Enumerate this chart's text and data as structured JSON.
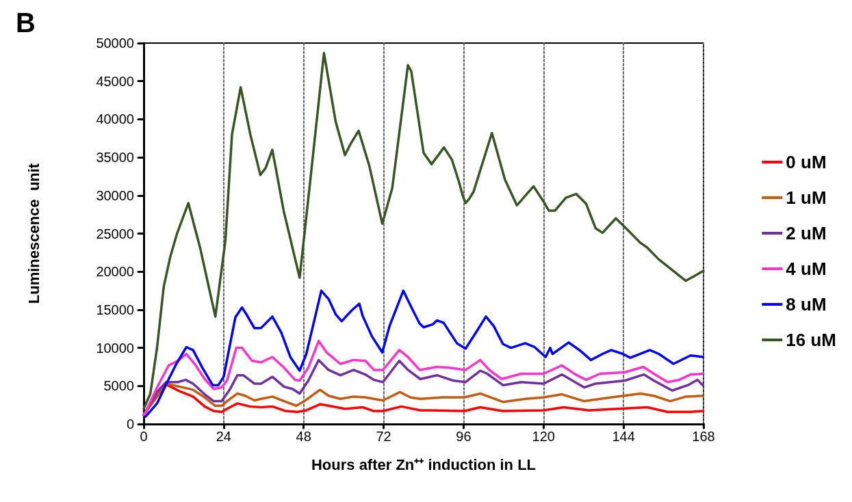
{
  "chart_data": {
    "type": "line",
    "title": "B",
    "xlabel": "Hours after Zn⁺⁺ induction in LL",
    "ylabel": "Luminescence  unit",
    "xlim": [
      0,
      168
    ],
    "xticks": [
      0,
      24,
      48,
      72,
      96,
      120,
      144,
      168
    ],
    "ylim": [
      0,
      50000
    ],
    "yticks": [
      0,
      5000,
      10000,
      15000,
      20000,
      25000,
      30000,
      35000,
      40000,
      45000,
      50000
    ],
    "grid": "x",
    "legend": "right",
    "marker": "none",
    "line_style": "solid",
    "series": [
      {
        "name": "0 uM",
        "color": "#ff0000",
        "x": [
          0,
          0.6,
          6.7,
          10.8,
          14.8,
          18.3,
          21,
          23.4,
          25,
          28.1,
          31.9,
          35.2,
          38.6,
          42.7,
          46.2,
          48.8,
          52.9,
          55.5,
          60.4,
          65.7,
          69.1,
          71.8,
          77.3,
          83,
          86,
          96.2,
          101,
          107.8,
          120,
          126,
          133.6,
          151.1,
          157.2,
          164.1,
          167.8
        ],
        "values": [
          1200,
          1600,
          5200,
          4300,
          3600,
          2300,
          1700,
          1600,
          2000,
          2700,
          2300,
          2200,
          2300,
          1700,
          1600,
          1800,
          2600,
          2400,
          2000,
          2200,
          1700,
          1700,
          2300,
          1800,
          1800,
          1700,
          2200,
          1700,
          1800,
          2200,
          1800,
          2200,
          1600,
          1600,
          1700
        ]
      },
      {
        "name": "1 uM",
        "color": "#c55a11",
        "x": [
          0,
          0.6,
          6.7,
          10.8,
          14.8,
          18.3,
          21.4,
          23.4,
          25,
          28.1,
          30.5,
          33.2,
          35.2,
          38.6,
          42.7,
          45.8,
          48.2,
          52.9,
          55.5,
          59,
          63,
          66.5,
          71.8,
          76.9,
          80,
          83,
          89.5,
          96.2,
          101,
          107.8,
          114.5,
          120,
          125.5,
          132.2,
          140.3,
          149.1,
          153.1,
          158,
          162.7,
          167.8
        ],
        "values": [
          1200,
          1600,
          5300,
          4900,
          4500,
          3500,
          2400,
          2400,
          3000,
          4000,
          3700,
          3100,
          3300,
          3600,
          2900,
          2400,
          3000,
          4500,
          3700,
          3300,
          3600,
          3500,
          3100,
          4200,
          3500,
          3300,
          3500,
          3500,
          4000,
          2900,
          3300,
          3500,
          3900,
          3000,
          3500,
          4000,
          3700,
          3000,
          3600,
          3700
        ]
      },
      {
        "name": "2 uM",
        "color": "#7030a0",
        "x": [
          0,
          0.6,
          4,
          6.7,
          10.2,
          12.6,
          14.8,
          18.3,
          21,
          23.4,
          25.8,
          28.1,
          29.9,
          33.2,
          35.2,
          38.6,
          42.1,
          44.7,
          46.8,
          49.4,
          52.5,
          55.5,
          59,
          63,
          66.5,
          69.1,
          71.8,
          76.7,
          79.3,
          83,
          88,
          92.9,
          96.6,
          101,
          103.1,
          107.8,
          113.3,
          120,
          125.5,
          132.2,
          135.6,
          144.4,
          150.1,
          153.1,
          158.6,
          163.3,
          166.2,
          167.8
        ],
        "values": [
          1200,
          1600,
          4200,
          5500,
          5500,
          5800,
          5300,
          3900,
          3000,
          3000,
          4500,
          6400,
          6400,
          5300,
          5300,
          6200,
          4900,
          4600,
          4000,
          5700,
          8400,
          7100,
          6400,
          7100,
          6500,
          5800,
          5500,
          8300,
          7100,
          5900,
          6400,
          5700,
          5500,
          7000,
          6600,
          5100,
          5500,
          5300,
          6500,
          4800,
          5300,
          5700,
          6500,
          5700,
          4400,
          5100,
          5800,
          5100
        ]
      },
      {
        "name": "4 uM",
        "color": "#ff33cc",
        "x": [
          0,
          0.6,
          4,
          7.5,
          10.2,
          12.8,
          15.6,
          18.3,
          21,
          23.4,
          25,
          27.8,
          29.5,
          32.5,
          35.2,
          38.6,
          42.1,
          45.4,
          46.8,
          49.4,
          52.5,
          54.9,
          59,
          63,
          66.5,
          69.1,
          71.8,
          76.7,
          79.3,
          82.8,
          88,
          91.5,
          96.6,
          101,
          103.7,
          107.4,
          113.3,
          120,
          125.5,
          129.6,
          132.8,
          136.9,
          144.4,
          149.9,
          153.1,
          157.2,
          160.7,
          164.1,
          167.8
        ],
        "values": [
          1200,
          1600,
          4800,
          7700,
          8300,
          9200,
          7700,
          5900,
          4600,
          4800,
          5700,
          10000,
          10000,
          8300,
          8100,
          8800,
          7400,
          5800,
          5700,
          7400,
          10900,
          9400,
          7900,
          8400,
          8300,
          7100,
          7100,
          9700,
          8800,
          7100,
          7500,
          7400,
          7100,
          8400,
          7100,
          5900,
          6600,
          6600,
          7700,
          6500,
          5800,
          6600,
          6800,
          7500,
          6600,
          5500,
          5800,
          6500,
          6600
        ]
      },
      {
        "name": "8 uM",
        "color": "#0000ff",
        "x": [
          0.6,
          4,
          7.5,
          9.8,
          12.8,
          14.8,
          17.6,
          20.7,
          22.4,
          24,
          27.5,
          29.5,
          31.1,
          33.2,
          35.2,
          38.6,
          41.3,
          44,
          46.8,
          48.8,
          53.3,
          55.5,
          57.6,
          59.4,
          62.4,
          64.7,
          65.7,
          68.5,
          71.6,
          73.8,
          77.9,
          80.7,
          82.8,
          84,
          86.8,
          88,
          90,
          94,
          96.6,
          99.7,
          102.7,
          105,
          107.8,
          110.2,
          114.5,
          117.3,
          120.6,
          122,
          122.7,
          127.5,
          130.8,
          134.2,
          137.7,
          140.3,
          143.8,
          146,
          151.9,
          154.6,
          159,
          164.1,
          167.8
        ],
        "values": [
          1000,
          2700,
          5900,
          7900,
          10100,
          9700,
          7400,
          5100,
          5100,
          6200,
          14000,
          15300,
          14200,
          12600,
          12600,
          14100,
          12000,
          8800,
          7000,
          9200,
          17500,
          16400,
          14400,
          13500,
          14900,
          15800,
          14200,
          11500,
          9400,
          12900,
          17500,
          15000,
          13200,
          12700,
          13100,
          13600,
          13300,
          10600,
          9900,
          12000,
          14100,
          12900,
          10500,
          10000,
          10600,
          10100,
          8800,
          10000,
          9200,
          10700,
          9700,
          8400,
          9200,
          9700,
          9200,
          8700,
          9700,
          9200,
          7900,
          9000,
          8800
        ]
      },
      {
        "name": "16 uM",
        "color": "#375623",
        "x": [
          0,
          2,
          4,
          6,
          8,
          10,
          13.4,
          17,
          21.5,
          24.5,
          26.5,
          29.1,
          32,
          35,
          36.6,
          38.6,
          42,
          46.8,
          50,
          54.1,
          57.6,
          60.4,
          62,
          64.5,
          67.7,
          71.6,
          74.6,
          79.3,
          80.3,
          84,
          86.4,
          90.1,
          92.5,
          94.6,
          95.8,
          96.6,
          97.6,
          99,
          104.5,
          108.4,
          112,
          117,
          120,
          121.6,
          123.4,
          126.7,
          129.8,
          132.8,
          135.6,
          137.7,
          141.7,
          145.4,
          149,
          151,
          154.6,
          162.7,
          168
        ],
        "values": [
          2000,
          4000,
          10000,
          18000,
          22000,
          25000,
          29000,
          23000,
          14100,
          24000,
          38000,
          44200,
          38000,
          32700,
          33600,
          36000,
          28000,
          19200,
          32000,
          48700,
          39700,
          35300,
          36700,
          38500,
          33900,
          26300,
          31000,
          47100,
          46300,
          35600,
          34100,
          36300,
          34700,
          31800,
          29900,
          29000,
          29500,
          30500,
          38200,
          32100,
          28700,
          31200,
          29200,
          28000,
          28000,
          29700,
          30200,
          28900,
          25700,
          25100,
          27000,
          25400,
          23800,
          23200,
          21600,
          18800,
          20100
        ]
      }
    ]
  }
}
